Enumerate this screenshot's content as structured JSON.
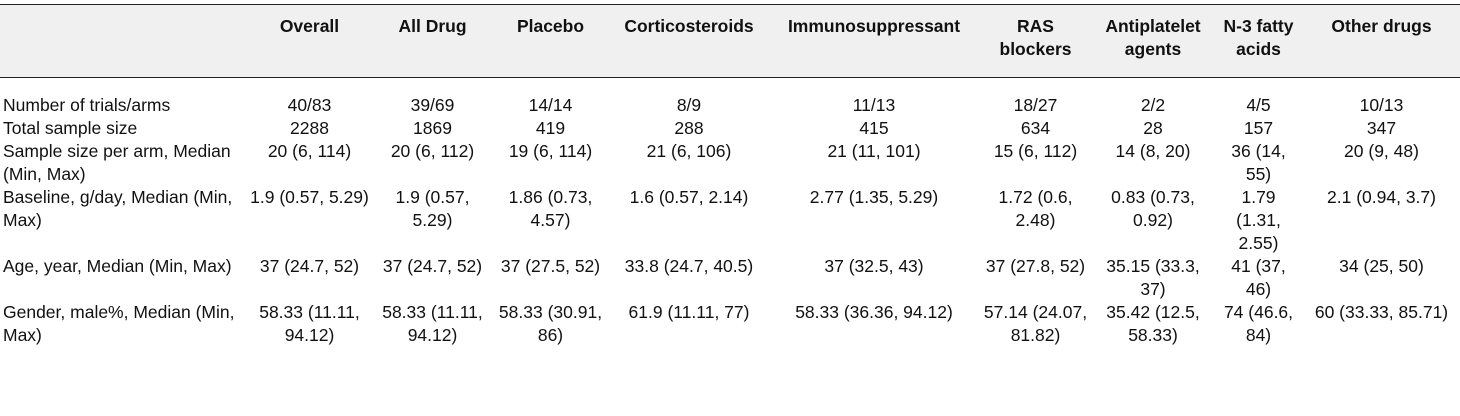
{
  "table": {
    "headers": [
      "",
      "Overall",
      "All Drug",
      "Placebo",
      "Corticosteroids",
      "Immunosuppressant",
      "RAS blockers",
      "Antiplatelet agents",
      "N-3 fatty acids",
      "Other drugs"
    ],
    "rows": [
      [
        "Number of trials/arms",
        "40/83",
        "39/69",
        "14/14",
        "8/9",
        "11/13",
        "18/27",
        "2/2",
        "4/5",
        "10/13"
      ],
      [
        "Total sample size",
        "2288",
        "1869",
        "419",
        "288",
        "415",
        "634",
        "28",
        "157",
        "347"
      ],
      [
        "Sample size per arm, Median (Min, Max)",
        "20 (6, 114)",
        "20 (6, 112)",
        "19 (6, 114)",
        "21 (6, 106)",
        "21 (11, 101)",
        "15 (6, 112)",
        "14 (8, 20)",
        "36 (14, 55)",
        "20 (9, 48)"
      ],
      [
        "Baseline, g/day, Median (Min, Max)",
        "1.9 (0.57, 5.29)",
        "1.9 (0.57, 5.29)",
        "1.86 (0.73, 4.57)",
        "1.6 (0.57, 2.14)",
        "2.77 (1.35, 5.29)",
        "1.72 (0.6, 2.48)",
        "0.83 (0.73, 0.92)",
        "1.79 (1.31, 2.55)",
        "2.1 (0.94, 3.7)"
      ],
      [
        "Age, year, Median (Min, Max)",
        "37 (24.7, 52)",
        "37 (24.7, 52)",
        "37 (27.5, 52)",
        "33.8 (24.7, 40.5)",
        "37 (32.5, 43)",
        "37 (27.8, 52)",
        "35.15 (33.3, 37)",
        "41 (37, 46)",
        "34 (25, 50)"
      ],
      [
        "Gender, male%, Median (Min, Max)",
        "58.33 (11.11, 94.12)",
        "58.33 (11.11, 94.12)",
        "58.33 (30.91, 86)",
        "61.9 (11.11, 77)",
        "58.33 (36.36, 94.12)",
        "57.14 (24.07, 81.82)",
        "35.42 (12.5, 58.33)",
        "74 (46.6, 84)",
        "60 (33.33, 85.71)"
      ]
    ]
  }
}
